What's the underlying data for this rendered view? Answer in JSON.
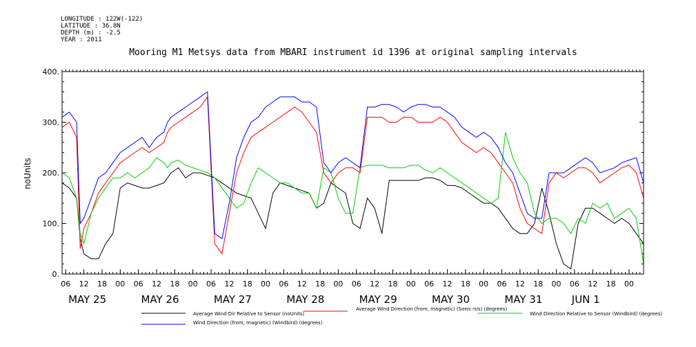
{
  "meta": {
    "longitude": "LONGITUDE : 122W(-122)",
    "latitude": "LATITUDE : 36.8N",
    "depth": "DEPTH (m) : -2.5",
    "year": "YEAR : 2011"
  },
  "chart_data": {
    "type": "line",
    "title": "Mooring M1 Metsys data from MBARI instrument id 1396 at original sampling intervals",
    "ylabel": "noUnits",
    "xlabel": "",
    "ylim": [
      0,
      400
    ],
    "yticks": [
      "0.",
      "100.",
      "200.",
      "300.",
      "400."
    ],
    "xlim_hours": [
      0,
      160
    ],
    "hour_ticks": [
      "06",
      "12",
      "18",
      "00",
      "06",
      "12",
      "18",
      "00",
      "06",
      "12",
      "18",
      "00",
      "06",
      "12",
      "18",
      "00",
      "06",
      "12",
      "18",
      "00",
      "06",
      "12",
      "18",
      "00",
      "06",
      "12",
      "18",
      "00",
      "06",
      "12",
      "18",
      "00"
    ],
    "day_labels": [
      "MAY 25",
      "MAY 26",
      "MAY 27",
      "MAY 28",
      "MAY 29",
      "MAY 30",
      "MAY 31",
      "JUN 1"
    ],
    "grid": false,
    "legend_position": "bottom",
    "series": [
      {
        "name": "Average Wind Dir Relative to Sensor (noUnits)",
        "color": "#000000",
        "x": [
          0,
          2,
          4,
          5,
          6,
          8,
          10,
          12,
          14,
          16,
          18,
          20,
          22,
          24,
          26,
          28,
          29,
          30,
          32,
          34,
          36,
          38,
          40,
          42,
          44,
          46,
          48,
          50,
          52,
          54,
          56,
          58,
          60,
          62,
          64,
          66,
          68,
          70,
          72,
          74,
          76,
          78,
          80,
          82,
          84,
          86,
          88,
          90,
          92,
          94,
          96,
          98,
          100,
          102,
          104,
          106,
          108,
          110,
          112,
          114,
          116,
          118,
          120,
          122,
          124,
          126,
          128,
          130,
          132,
          134,
          136,
          138,
          140,
          142,
          144,
          146,
          148,
          150,
          152,
          154,
          156,
          158,
          160
        ],
        "values": [
          180,
          170,
          150,
          70,
          40,
          30,
          30,
          60,
          80,
          170,
          180,
          175,
          170,
          170,
          175,
          180,
          190,
          200,
          210,
          190,
          200,
          200,
          195,
          190,
          180,
          170,
          160,
          155,
          150,
          120,
          90,
          160,
          180,
          175,
          170,
          165,
          160,
          130,
          140,
          180,
          170,
          160,
          100,
          90,
          150,
          130,
          80,
          185,
          185,
          185,
          185,
          185,
          190,
          190,
          185,
          175,
          175,
          170,
          160,
          150,
          140,
          140,
          130,
          110,
          90,
          80,
          80,
          100,
          170,
          120,
          60,
          20,
          10,
          100,
          130,
          130,
          120,
          110,
          100,
          110,
          100,
          80,
          60
        ]
      },
      {
        "name": "Average Wind Direction (from, magnetic) (Sonic-n/s) (degrees)",
        "color": "#ff0000",
        "x": [
          0,
          2,
          4,
          5,
          6,
          8,
          10,
          12,
          14,
          16,
          18,
          20,
          22,
          24,
          26,
          28,
          29,
          30,
          32,
          34,
          36,
          38,
          40,
          42,
          44,
          46,
          48,
          50,
          52,
          54,
          56,
          58,
          60,
          62,
          64,
          66,
          68,
          70,
          72,
          74,
          76,
          78,
          80,
          82,
          84,
          86,
          88,
          90,
          92,
          94,
          96,
          98,
          100,
          102,
          104,
          106,
          108,
          110,
          112,
          114,
          116,
          118,
          120,
          122,
          124,
          126,
          128,
          130,
          132,
          134,
          136,
          138,
          140,
          142,
          144,
          146,
          148,
          150,
          152,
          154,
          156,
          158,
          160
        ],
        "values": [
          290,
          300,
          270,
          50,
          90,
          120,
          160,
          180,
          200,
          220,
          230,
          240,
          250,
          240,
          250,
          260,
          280,
          290,
          300,
          310,
          320,
          330,
          350,
          60,
          40,
          120,
          200,
          240,
          270,
          280,
          290,
          300,
          310,
          320,
          330,
          320,
          300,
          280,
          200,
          180,
          200,
          210,
          210,
          200,
          310,
          310,
          310,
          300,
          300,
          310,
          310,
          300,
          300,
          300,
          310,
          300,
          280,
          260,
          250,
          240,
          250,
          240,
          220,
          200,
          180,
          130,
          100,
          90,
          80,
          180,
          200,
          190,
          200,
          210,
          210,
          200,
          180,
          190,
          200,
          210,
          215,
          200,
          150
        ]
      },
      {
        "name": "Wind Direction Relative to Sensor (Windbird) (degrees)",
        "color": "#00cc00",
        "x": [
          0,
          2,
          4,
          5,
          6,
          8,
          10,
          12,
          14,
          16,
          18,
          20,
          22,
          24,
          26,
          28,
          29,
          30,
          32,
          34,
          36,
          38,
          40,
          42,
          44,
          46,
          48,
          50,
          52,
          54,
          56,
          58,
          60,
          62,
          64,
          66,
          68,
          70,
          72,
          74,
          76,
          78,
          80,
          82,
          84,
          86,
          88,
          90,
          92,
          94,
          96,
          98,
          100,
          102,
          104,
          106,
          108,
          110,
          112,
          114,
          116,
          118,
          120,
          122,
          124,
          126,
          128,
          130,
          132,
          134,
          136,
          138,
          140,
          142,
          144,
          146,
          148,
          150,
          152,
          154,
          156,
          158,
          160
        ],
        "values": [
          200,
          190,
          150,
          80,
          60,
          120,
          150,
          170,
          190,
          190,
          200,
          190,
          200,
          210,
          230,
          220,
          210,
          220,
          225,
          215,
          210,
          205,
          200,
          190,
          170,
          150,
          130,
          140,
          180,
          210,
          200,
          190,
          180,
          180,
          170,
          160,
          160,
          130,
          210,
          200,
          150,
          120,
          120,
          210,
          215,
          215,
          215,
          210,
          210,
          210,
          215,
          215,
          205,
          200,
          210,
          200,
          190,
          180,
          170,
          160,
          150,
          140,
          150,
          280,
          230,
          200,
          180,
          120,
          100,
          110,
          110,
          100,
          80,
          110,
          100,
          140,
          130,
          140,
          110,
          120,
          130,
          110,
          20
        ]
      },
      {
        "name": "Wind Direction (from, magnetic) (Windbird) (degrees)",
        "color": "#0000ff",
        "x": [
          0,
          2,
          4,
          5,
          6,
          8,
          10,
          12,
          14,
          16,
          18,
          20,
          22,
          24,
          26,
          28,
          29,
          30,
          32,
          34,
          36,
          38,
          40,
          42,
          44,
          46,
          48,
          50,
          52,
          54,
          56,
          58,
          60,
          62,
          64,
          66,
          68,
          70,
          72,
          74,
          76,
          78,
          80,
          82,
          84,
          86,
          88,
          90,
          92,
          94,
          96,
          98,
          100,
          102,
          104,
          106,
          108,
          110,
          112,
          114,
          116,
          118,
          120,
          122,
          124,
          126,
          128,
          130,
          132,
          134,
          136,
          138,
          140,
          142,
          144,
          146,
          148,
          150,
          152,
          154,
          156,
          158,
          160
        ],
        "values": [
          310,
          320,
          300,
          100,
          110,
          150,
          190,
          200,
          220,
          240,
          250,
          260,
          270,
          250,
          270,
          280,
          300,
          310,
          320,
          330,
          340,
          350,
          360,
          80,
          70,
          140,
          230,
          270,
          300,
          310,
          330,
          340,
          350,
          350,
          350,
          340,
          340,
          330,
          220,
          200,
          220,
          230,
          220,
          210,
          330,
          330,
          335,
          335,
          330,
          320,
          330,
          335,
          335,
          330,
          330,
          320,
          310,
          290,
          280,
          270,
          280,
          270,
          250,
          220,
          200,
          160,
          120,
          110,
          110,
          200,
          200,
          200,
          210,
          220,
          230,
          220,
          200,
          205,
          210,
          220,
          225,
          230,
          180
        ]
      }
    ]
  }
}
